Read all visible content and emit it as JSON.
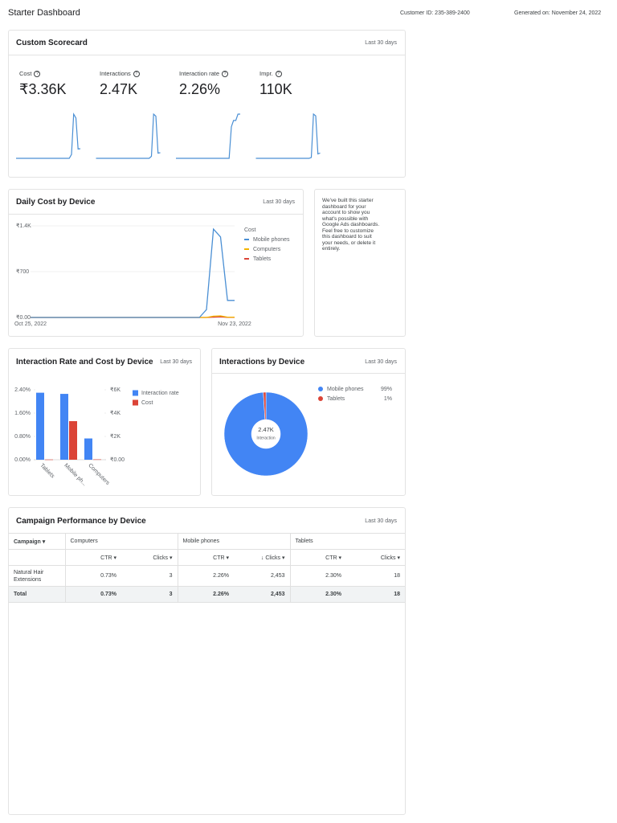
{
  "header": {
    "title": "Starter Dashboard",
    "customer_id": "Customer ID: 235-389-2400",
    "generated_on": "Generated on: November 24, 2022"
  },
  "scorecard": {
    "title": "Custom Scorecard",
    "period": "Last 30 days",
    "metrics": [
      {
        "label": "Cost",
        "value": "₹3.36K",
        "trend": [
          0,
          0,
          0,
          0,
          0,
          0,
          0,
          0,
          0,
          0,
          0,
          0,
          0,
          0,
          0,
          0,
          0,
          0,
          0,
          0,
          0,
          0,
          0,
          0,
          0,
          120,
          1380,
          1260,
          290,
          300
        ]
      },
      {
        "label": "Interactions",
        "value": "2.47K",
        "trend": [
          0,
          0,
          0,
          0,
          0,
          0,
          0,
          0,
          0,
          0,
          0,
          0,
          0,
          0,
          0,
          0,
          0,
          0,
          0,
          0,
          0,
          0,
          0,
          0,
          0,
          50,
          1100,
          1050,
          130,
          140
        ]
      },
      {
        "label": "Interaction rate",
        "value": "2.26%",
        "trend": [
          0,
          0,
          0,
          0,
          0,
          0,
          0,
          0,
          0,
          0,
          0,
          0,
          0,
          0,
          0,
          0,
          0,
          0,
          0,
          0,
          0,
          0,
          0,
          0,
          0,
          0.05,
          0.06,
          0.06,
          0.07,
          0.07
        ]
      },
      {
        "label": "Impr.",
        "value": "110K",
        "trend": [
          0,
          0,
          0,
          0,
          0,
          0,
          0,
          0,
          0,
          0,
          0,
          0,
          0,
          0,
          0,
          0,
          0,
          0,
          0,
          0,
          0,
          0,
          0,
          0,
          0,
          1000,
          50000,
          48000,
          5000,
          6000
        ]
      }
    ]
  },
  "daily_cost": {
    "title": "Daily Cost by Device",
    "period": "Last 30 days",
    "chart_data": {
      "type": "line",
      "legend_title": "Cost",
      "categories": [
        "Oct 25, 2022",
        null,
        null,
        null,
        null,
        null,
        null,
        null,
        null,
        null,
        null,
        null,
        null,
        null,
        null,
        null,
        null,
        null,
        null,
        null,
        null,
        null,
        null,
        null,
        null,
        null,
        null,
        null,
        null,
        "Nov 23, 2022"
      ],
      "series": [
        {
          "name": "Mobile phones",
          "color": "#4a8fd4",
          "values": [
            0,
            0,
            0,
            0,
            0,
            0,
            0,
            0,
            0,
            0,
            0,
            0,
            0,
            0,
            0,
            0,
            0,
            0,
            0,
            0,
            0,
            0,
            0,
            0,
            0,
            120,
            1350,
            1230,
            260,
            260
          ]
        },
        {
          "name": "Computers",
          "color": "#f4b400",
          "values": [
            0,
            0,
            0,
            0,
            0,
            0,
            0,
            0,
            0,
            0,
            0,
            0,
            0,
            0,
            0,
            0,
            0,
            0,
            0,
            0,
            0,
            0,
            0,
            0,
            0,
            0,
            20,
            25,
            5,
            5
          ]
        },
        {
          "name": "Tablets",
          "color": "#db4437",
          "values": [
            0,
            0,
            0,
            0,
            0,
            0,
            0,
            0,
            0,
            0,
            0,
            0,
            0,
            0,
            0,
            0,
            0,
            0,
            0,
            0,
            0,
            0,
            0,
            0,
            0,
            0,
            5,
            10,
            3,
            2
          ]
        }
      ],
      "ylim": [
        0,
        1400
      ],
      "yticks": [
        {
          "value": 0,
          "label": "₹0.00"
        },
        {
          "value": 700,
          "label": "₹700"
        },
        {
          "value": 1400,
          "label": "₹1.4K"
        }
      ],
      "grid": true
    }
  },
  "note": {
    "text": "We've built this starter dashboard for your account to show you what's possible with Google Ads dashboards. Feel free to customize this dashboard to suit your needs, or delete it entirely."
  },
  "interaction_rate_cost": {
    "title": "Interaction Rate and Cost by Device",
    "period": "Last 30 days",
    "chart_data": {
      "type": "bar",
      "categories": [
        "Tablets",
        "Mobile ph...",
        "Computers"
      ],
      "series": [
        {
          "name": "Interaction rate",
          "color": "#4285f4",
          "values": [
            2.3,
            2.26,
            0.73
          ]
        },
        {
          "name": "Cost",
          "color": "#db4437",
          "axis": "y2",
          "values": [
            20,
            3310,
            30
          ]
        }
      ],
      "ylim": [
        0,
        2.4
      ],
      "yticks": [
        {
          "value": 0,
          "label": "0.00%"
        },
        {
          "value": 0.8,
          "label": "0.80%"
        },
        {
          "value": 1.6,
          "label": "1.60%"
        },
        {
          "value": 2.4,
          "label": "2.40%"
        }
      ],
      "y2lim": [
        0,
        6000
      ],
      "y2ticks": [
        {
          "value": 0,
          "label": "₹0.00"
        },
        {
          "value": 2000,
          "label": "₹2K"
        },
        {
          "value": 4000,
          "label": "₹4K"
        },
        {
          "value": 6000,
          "label": "₹6K"
        }
      ]
    }
  },
  "interactions_by_device": {
    "title": "Interactions by Device",
    "period": "Last 30 days",
    "chart_data": {
      "type": "pie",
      "center_value": "2.47K",
      "center_label": "Interaction",
      "categories": [
        "Mobile phones",
        "Tablets"
      ],
      "values": [
        99,
        1
      ],
      "value_labels": [
        "99%",
        "1%"
      ],
      "colors": [
        "#4285f4",
        "#db4437"
      ]
    }
  },
  "campaign_table": {
    "title": "Campaign Performance by Device",
    "period": "Last 30 days",
    "group_headers": [
      "Campaign",
      "Computers",
      "Mobile phones",
      "Tablets"
    ],
    "column_headers": [
      "CTR",
      "Clicks",
      "CTR",
      "Clicks",
      "CTR",
      "Clicks"
    ],
    "rows": [
      [
        "Natural Hair Extensions",
        "0.73%",
        "3",
        "2.26%",
        "2,453",
        "2.30%",
        "18"
      ],
      [
        "Total",
        "0.73%",
        "3",
        "2.26%",
        "2,453",
        "2.30%",
        "18"
      ]
    ]
  }
}
